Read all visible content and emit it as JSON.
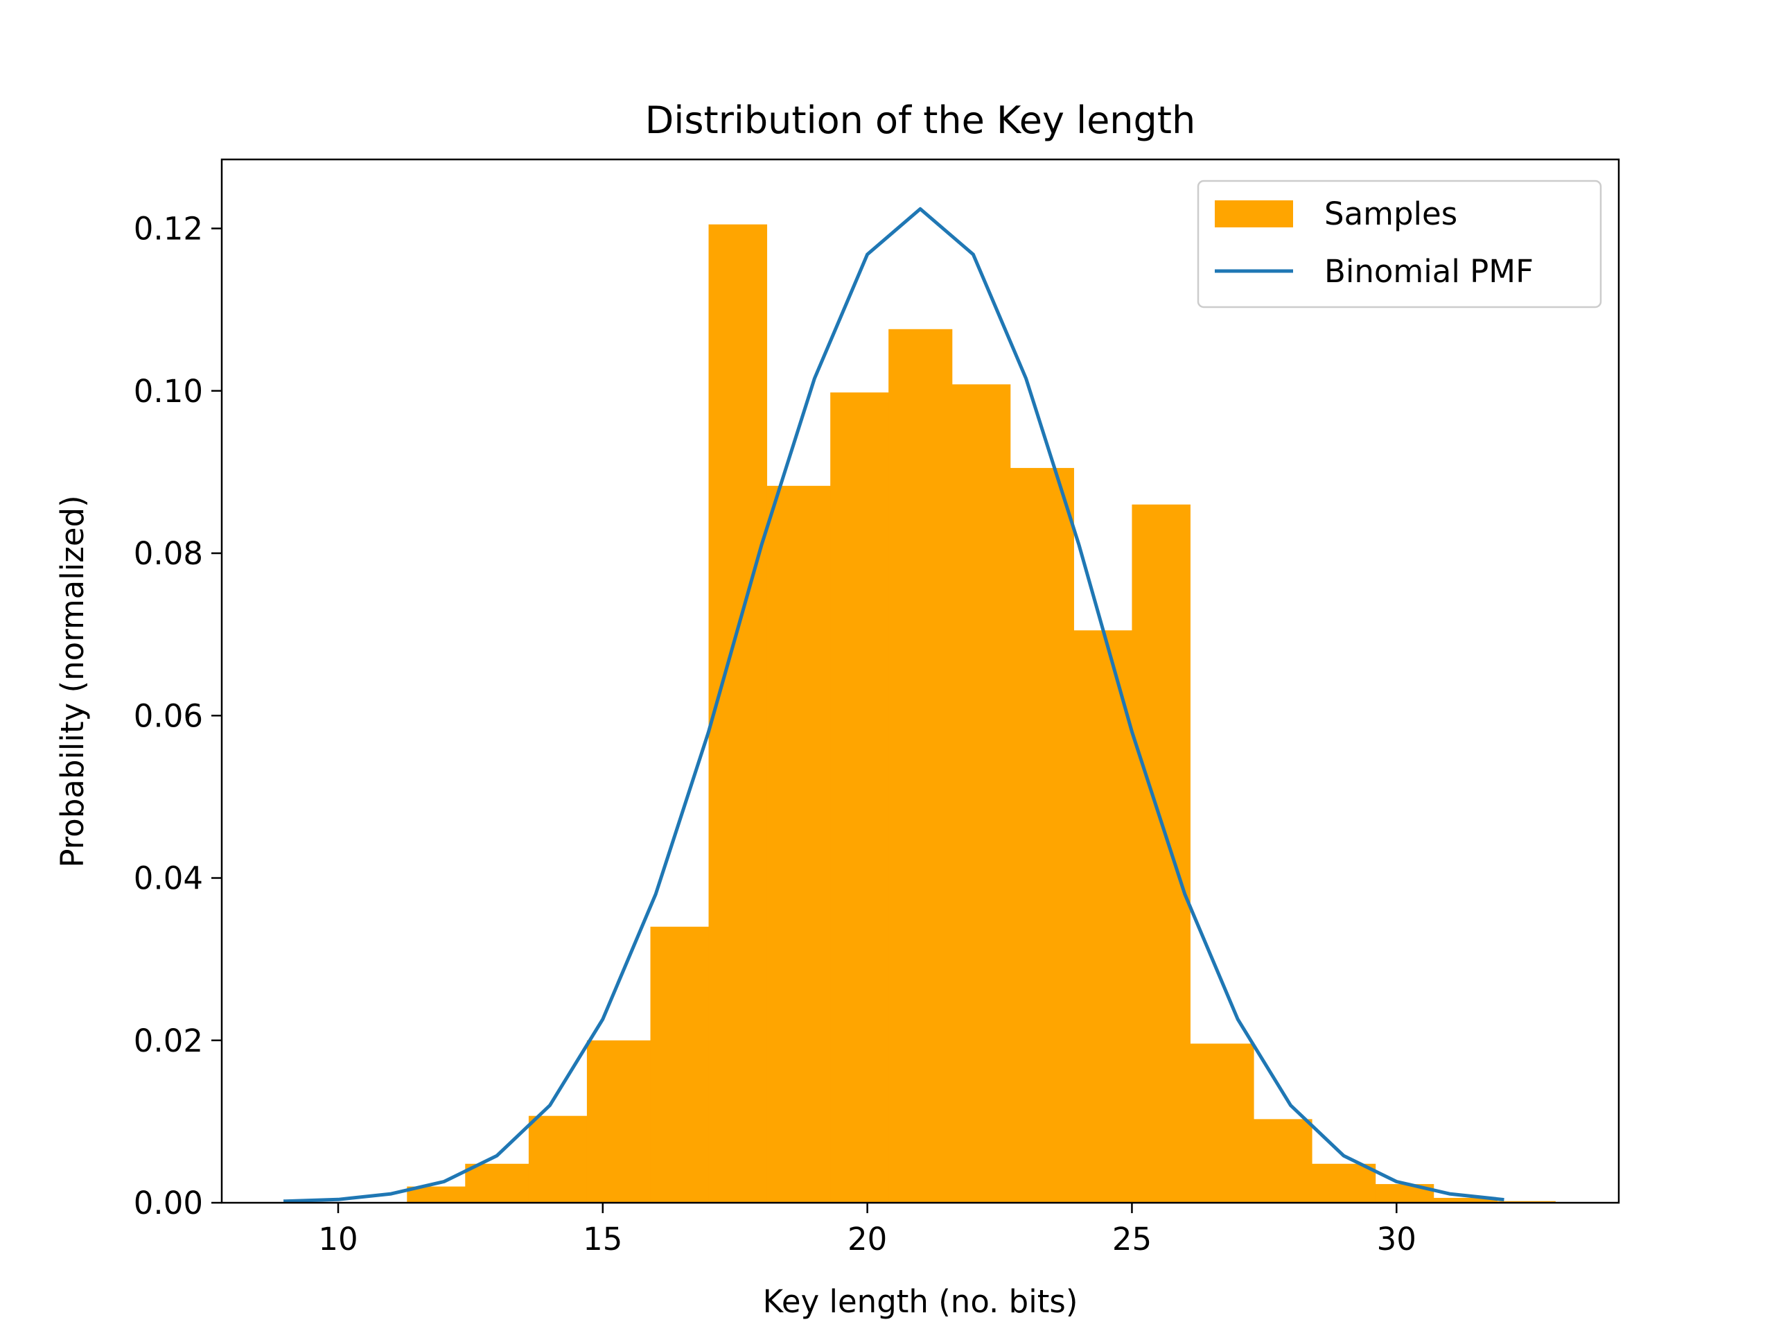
{
  "chart_data": {
    "type": "bar",
    "title": "Distribution of the Key length",
    "xlabel": "Key length (no. bits)",
    "ylabel": "Probability (normalized)",
    "xlim": [
      7.8,
      34.2
    ],
    "ylim": [
      0,
      0.1285
    ],
    "xticks": [
      10,
      15,
      20,
      25,
      30
    ],
    "yticks": [
      0.0,
      0.02,
      0.04,
      0.06,
      0.08,
      0.1,
      0.12
    ],
    "ytick_labels": [
      "0.00",
      "0.02",
      "0.04",
      "0.06",
      "0.08",
      "0.10",
      "0.12"
    ],
    "xtick_labels": [
      "10",
      "15",
      "20",
      "25",
      "30"
    ],
    "legend_position": "upper right",
    "series": [
      {
        "name": "Samples",
        "kind": "histogram",
        "color": "#FFA500",
        "bins": [
          {
            "x0": 11.3,
            "x1": 12.4,
            "y": 0.002
          },
          {
            "x0": 12.4,
            "x1": 13.6,
            "y": 0.0048
          },
          {
            "x0": 13.6,
            "x1": 14.7,
            "y": 0.0107
          },
          {
            "x0": 14.7,
            "x1": 15.9,
            "y": 0.02
          },
          {
            "x0": 15.9,
            "x1": 17.0,
            "y": 0.034
          },
          {
            "x0": 17.0,
            "x1": 18.1,
            "y": 0.1205
          },
          {
            "x0": 18.1,
            "x1": 19.3,
            "y": 0.0883
          },
          {
            "x0": 19.3,
            "x1": 20.4,
            "y": 0.0998
          },
          {
            "x0": 20.4,
            "x1": 21.6,
            "y": 0.1076
          },
          {
            "x0": 21.6,
            "x1": 22.7,
            "y": 0.1008
          },
          {
            "x0": 22.7,
            "x1": 23.9,
            "y": 0.0905
          },
          {
            "x0": 23.9,
            "x1": 25.0,
            "y": 0.0705
          },
          {
            "x0": 25.0,
            "x1": 26.1,
            "y": 0.086
          },
          {
            "x0": 26.1,
            "x1": 27.3,
            "y": 0.0196
          },
          {
            "x0": 27.3,
            "x1": 28.4,
            "y": 0.0103
          },
          {
            "x0": 28.4,
            "x1": 29.6,
            "y": 0.0048
          },
          {
            "x0": 29.6,
            "x1": 30.7,
            "y": 0.0023
          },
          {
            "x0": 30.7,
            "x1": 31.9,
            "y": 0.0006
          },
          {
            "x0": 31.9,
            "x1": 33.0,
            "y": 0.0002
          }
        ]
      },
      {
        "name": "Binomial PMF",
        "kind": "line",
        "color": "#1F77B4",
        "x": [
          9,
          10,
          11,
          12,
          13,
          14,
          15,
          16,
          17,
          18,
          19,
          20,
          21,
          22,
          23,
          24,
          25,
          26,
          27,
          28,
          29,
          30,
          31,
          32
        ],
        "y": [
          0.0002,
          0.0004,
          0.0011,
          0.0026,
          0.0058,
          0.012,
          0.0226,
          0.038,
          0.058,
          0.081,
          0.1015,
          0.1168,
          0.1224,
          0.1168,
          0.1015,
          0.081,
          0.058,
          0.038,
          0.0226,
          0.012,
          0.0058,
          0.0026,
          0.0011,
          0.0004
        ]
      }
    ]
  }
}
